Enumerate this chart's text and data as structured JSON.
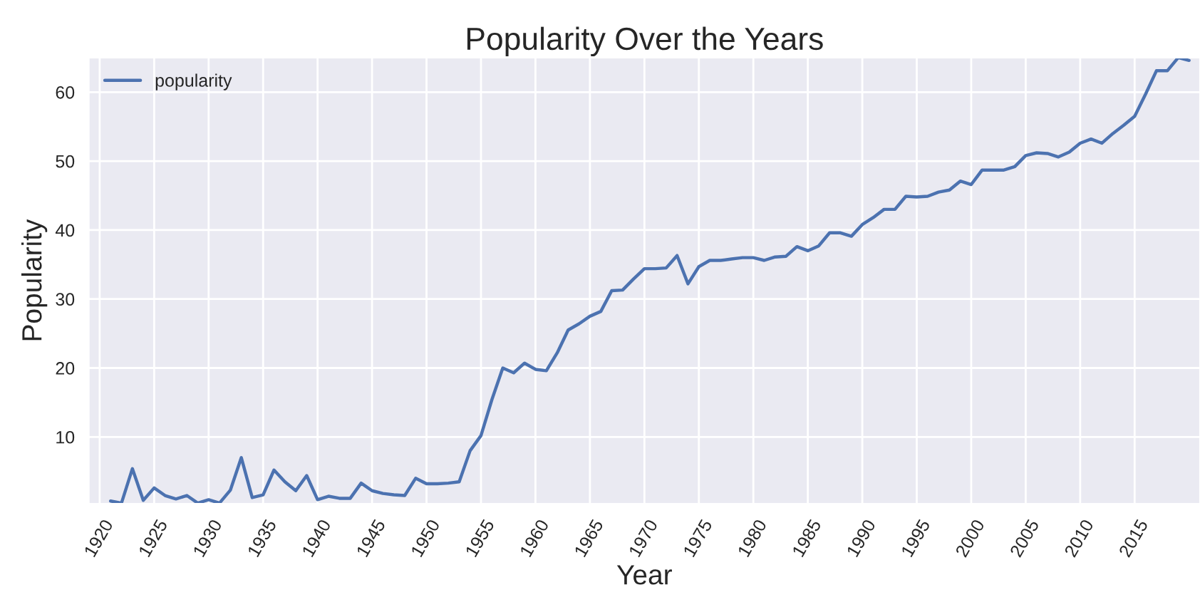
{
  "chart_data": {
    "type": "line",
    "title": "Popularity Over the Years",
    "xlabel": "Year",
    "ylabel": "Popularity",
    "x": [
      1921,
      1922,
      1923,
      1924,
      1925,
      1926,
      1927,
      1928,
      1929,
      1930,
      1931,
      1932,
      1933,
      1934,
      1935,
      1936,
      1937,
      1938,
      1939,
      1940,
      1941,
      1942,
      1943,
      1944,
      1945,
      1946,
      1947,
      1948,
      1949,
      1950,
      1951,
      1952,
      1953,
      1954,
      1955,
      1956,
      1957,
      1958,
      1959,
      1960,
      1961,
      1962,
      1963,
      1964,
      1965,
      1966,
      1967,
      1968,
      1969,
      1970,
      1971,
      1972,
      1973,
      1974,
      1975,
      1976,
      1977,
      1978,
      1979,
      1980,
      1981,
      1982,
      1983,
      1984,
      1985,
      1986,
      1987,
      1988,
      1989,
      1990,
      1991,
      1992,
      1993,
      1994,
      1995,
      1996,
      1997,
      1998,
      1999,
      2000,
      2001,
      2002,
      2003,
      2004,
      2005,
      2006,
      2007,
      2008,
      2009,
      2010,
      2011,
      2012,
      2013,
      2014,
      2015,
      2016,
      2017,
      2018,
      2019,
      2020
    ],
    "series": [
      {
        "name": "popularity",
        "color": "#4c72b0",
        "values": [
          0.7,
          0.4,
          5.4,
          0.8,
          2.6,
          1.5,
          1.0,
          1.5,
          0.4,
          0.9,
          0.4,
          2.3,
          7.0,
          1.2,
          1.6,
          5.2,
          3.5,
          2.2,
          4.4,
          0.9,
          1.4,
          1.1,
          1.1,
          3.3,
          2.2,
          1.8,
          1.6,
          1.5,
          4.0,
          3.2,
          3.2,
          3.3,
          3.5,
          8.0,
          10.2,
          15.4,
          20.0,
          19.3,
          20.7,
          19.8,
          19.6,
          22.2,
          25.5,
          26.4,
          27.5,
          28.2,
          31.2,
          31.3,
          32.9,
          34.4,
          34.4,
          34.5,
          36.3,
          32.2,
          34.7,
          35.6,
          35.6,
          35.8,
          36.0,
          36.0,
          35.6,
          36.1,
          36.2,
          37.6,
          37.0,
          37.7,
          39.6,
          39.6,
          39.1,
          40.8,
          41.8,
          43.0,
          43.0,
          44.9,
          44.8,
          44.9,
          45.5,
          45.8,
          47.1,
          46.6,
          48.7,
          48.7,
          48.7,
          49.2,
          50.8,
          51.2,
          51.1,
          50.6,
          51.3,
          52.6,
          53.2,
          52.6,
          54.0,
          55.2,
          56.5,
          59.7,
          63.1,
          63.1,
          65.0,
          64.6
        ]
      }
    ],
    "xlim": [
      1919,
      2021
    ],
    "xticks": [
      1920,
      1925,
      1930,
      1935,
      1940,
      1945,
      1950,
      1955,
      1960,
      1965,
      1970,
      1975,
      1980,
      1985,
      1990,
      1995,
      2000,
      2005,
      2010,
      2015
    ],
    "ylim": [
      0.3,
      65
    ],
    "yticks": [
      10,
      20,
      30,
      40,
      50,
      60
    ],
    "grid": true,
    "legend": "top left"
  }
}
